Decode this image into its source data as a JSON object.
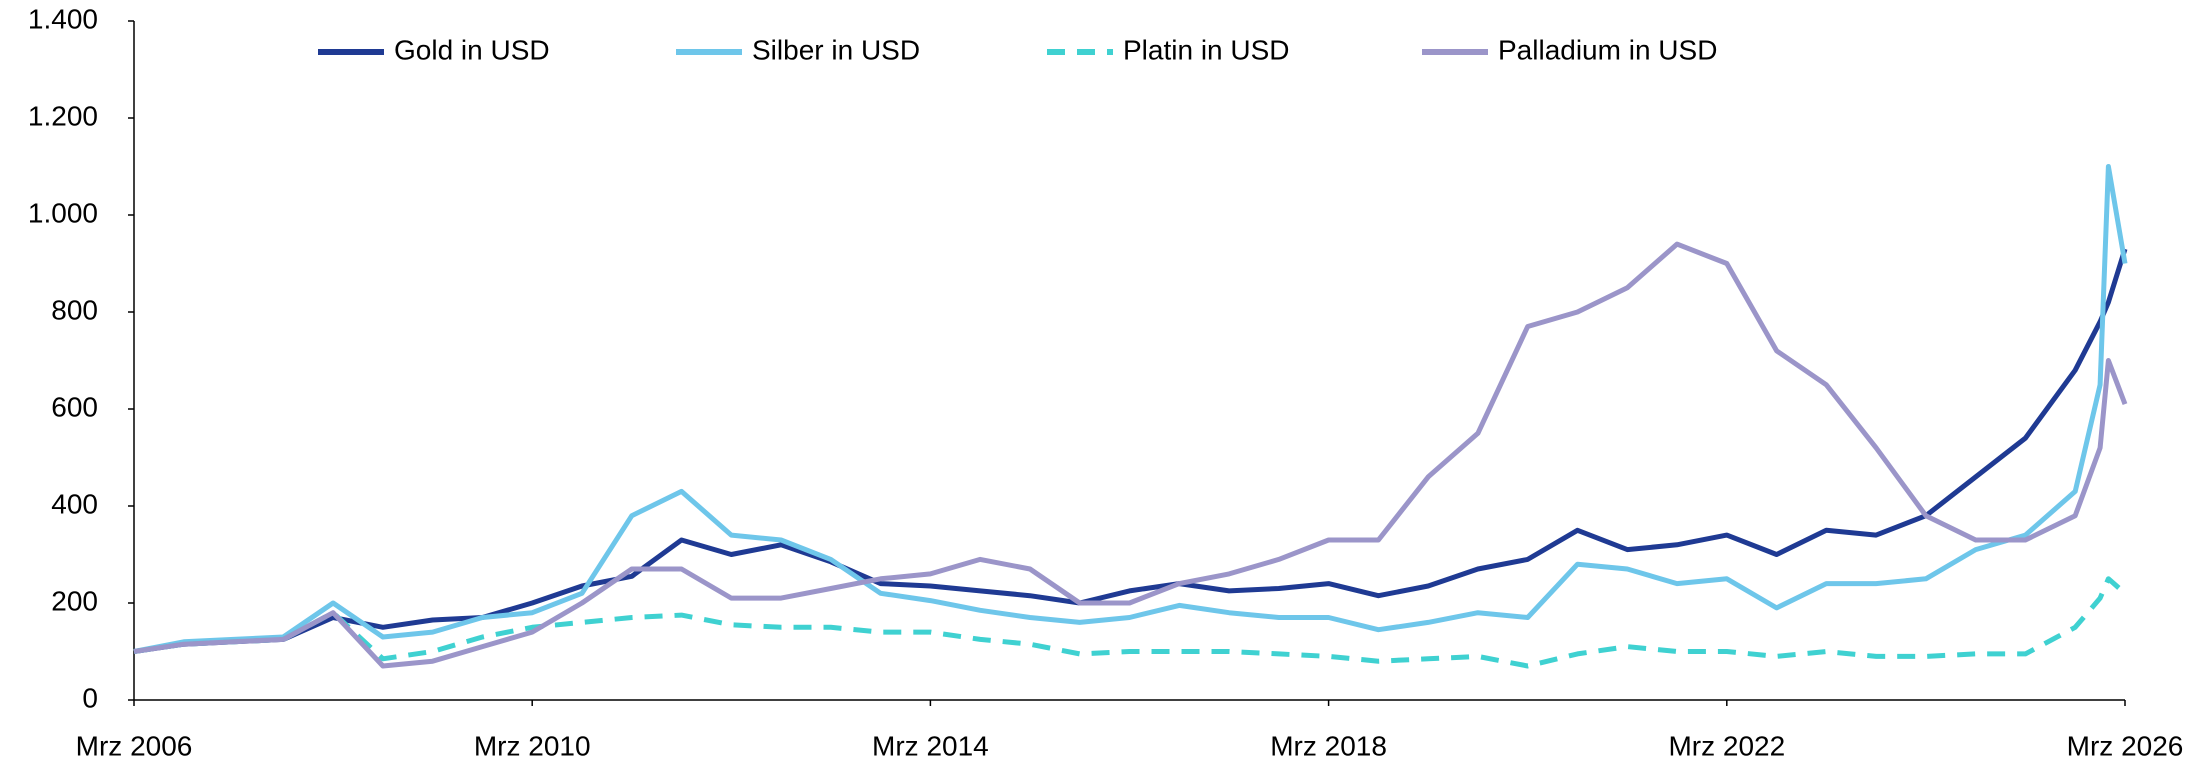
{
  "chart_data": {
    "type": "line",
    "x": [
      "2006-03",
      "2006-09",
      "2007-03",
      "2007-09",
      "2008-03",
      "2008-09",
      "2009-03",
      "2009-09",
      "2010-03",
      "2010-09",
      "2011-03",
      "2011-09",
      "2012-03",
      "2012-09",
      "2013-03",
      "2013-09",
      "2014-03",
      "2014-09",
      "2015-03",
      "2015-09",
      "2016-03",
      "2016-09",
      "2017-03",
      "2017-09",
      "2018-03",
      "2018-09",
      "2019-03",
      "2019-09",
      "2020-03",
      "2020-09",
      "2021-03",
      "2021-09",
      "2022-03",
      "2022-09",
      "2023-03",
      "2023-09",
      "2024-03",
      "2024-09",
      "2025-03",
      "2025-09",
      "2025-12",
      "2026-01",
      "2026-03"
    ],
    "xticks": [
      {
        "value": "2006-03",
        "label": "Mrz 2006"
      },
      {
        "value": "2010-03",
        "label": "Mrz 2010"
      },
      {
        "value": "2014-03",
        "label": "Mrz 2014"
      },
      {
        "value": "2018-03",
        "label": "Mrz 2018"
      },
      {
        "value": "2022-03",
        "label": "Mrz 2022"
      },
      {
        "value": "2026-03",
        "label": "Mrz 2026"
      }
    ],
    "ylim": [
      0,
      1400
    ],
    "yticks": [
      0,
      200,
      400,
      600,
      800,
      {
        "value": 1000,
        "label": "1.000"
      },
      {
        "value": 1200,
        "label": "1.200"
      },
      {
        "value": 1400,
        "label": "1.400"
      }
    ],
    "legend": "top",
    "series": [
      {
        "name": "Gold in USD",
        "color": "#1f3a93",
        "style": "solid",
        "values": [
          100,
          115,
          120,
          125,
          170,
          150,
          165,
          170,
          200,
          235,
          255,
          330,
          300,
          320,
          285,
          240,
          235,
          225,
          215,
          200,
          225,
          240,
          225,
          230,
          240,
          215,
          235,
          270,
          290,
          350,
          310,
          320,
          340,
          300,
          350,
          340,
          380,
          460,
          540,
          680,
          780,
          820,
          930
        ]
      },
      {
        "name": "Silber in USD",
        "color": "#6ec6ea",
        "style": "solid",
        "values": [
          100,
          120,
          125,
          130,
          200,
          130,
          140,
          170,
          180,
          220,
          380,
          430,
          340,
          330,
          290,
          220,
          205,
          185,
          170,
          160,
          170,
          195,
          180,
          170,
          170,
          145,
          160,
          180,
          170,
          280,
          270,
          240,
          250,
          190,
          240,
          240,
          250,
          310,
          340,
          430,
          650,
          1100,
          900
        ]
      },
      {
        "name": "Platin in USD",
        "color": "#3fd1d1",
        "style": "dashed",
        "values": [
          100,
          115,
          120,
          125,
          180,
          85,
          100,
          130,
          150,
          160,
          170,
          175,
          155,
          150,
          150,
          140,
          140,
          125,
          115,
          95,
          100,
          100,
          100,
          95,
          90,
          80,
          85,
          90,
          70,
          95,
          110,
          100,
          100,
          90,
          100,
          90,
          90,
          95,
          95,
          150,
          210,
          250,
          220
        ]
      },
      {
        "name": "Palladium in USD",
        "color": "#9b95c9",
        "style": "solid",
        "values": [
          100,
          115,
          120,
          125,
          180,
          70,
          80,
          110,
          140,
          200,
          270,
          270,
          210,
          210,
          230,
          250,
          260,
          290,
          270,
          200,
          200,
          240,
          260,
          290,
          330,
          330,
          460,
          550,
          770,
          800,
          850,
          940,
          900,
          720,
          650,
          520,
          380,
          330,
          330,
          380,
          520,
          700,
          610
        ]
      }
    ]
  }
}
